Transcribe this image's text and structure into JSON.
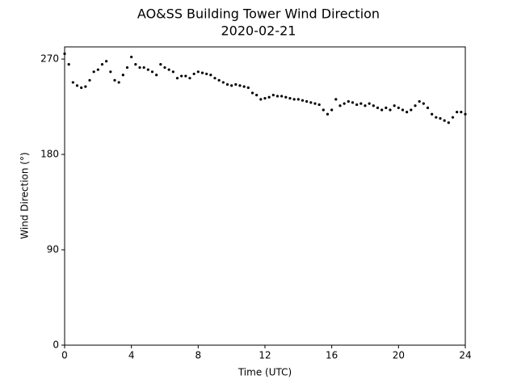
{
  "chart_data": {
    "type": "scatter",
    "title": "AO&SS Building Tower Wind Direction",
    "subtitle": "2020-02-21",
    "x_label": "Time (UTC)",
    "y_label": "Wind Direction (°)",
    "color": "#000000",
    "xlim": [
      0,
      24
    ],
    "xticks": [
      0,
      4,
      8,
      12,
      16,
      20,
      24
    ],
    "ylim": [
      0,
      281.5
    ],
    "yticks": [
      0,
      90,
      180,
      270
    ],
    "x": [
      0,
      0.25,
      0.5,
      0.75,
      1,
      1.25,
      1.5,
      1.75,
      2,
      2.25,
      2.5,
      2.75,
      3,
      3.25,
      3.5,
      3.75,
      4,
      4.25,
      4.5,
      4.75,
      5,
      5.25,
      5.5,
      5.75,
      6,
      6.25,
      6.5,
      6.75,
      7,
      7.25,
      7.5,
      7.75,
      8,
      8.25,
      8.5,
      8.75,
      9,
      9.25,
      9.5,
      9.75,
      10,
      10.25,
      10.5,
      10.75,
      11,
      11.25,
      11.5,
      11.75,
      12,
      12.25,
      12.5,
      12.75,
      13,
      13.25,
      13.5,
      13.75,
      14,
      14.25,
      14.5,
      14.75,
      15,
      15.25,
      15.5,
      15.75,
      16,
      16.25,
      16.5,
      16.75,
      17,
      17.25,
      17.5,
      17.75,
      18,
      18.25,
      18.5,
      18.75,
      19,
      19.25,
      19.5,
      19.75,
      20,
      20.25,
      20.5,
      20.75,
      21,
      21.25,
      21.5,
      21.75,
      22,
      22.25,
      22.5,
      22.75,
      23,
      23.25,
      23.5,
      23.75,
      24
    ],
    "values": [
      275,
      265,
      248,
      245,
      243,
      244,
      250,
      258,
      260,
      265,
      268,
      258,
      250,
      248,
      255,
      262,
      272,
      265,
      262,
      262,
      260,
      258,
      255,
      265,
      262,
      260,
      258,
      252,
      254,
      254,
      252,
      256,
      258,
      257,
      256,
      255,
      252,
      250,
      248,
      246,
      245,
      246,
      245,
      244,
      243,
      238,
      236,
      232,
      233,
      234,
      236,
      235,
      235,
      234,
      233,
      232,
      232,
      231,
      230,
      229,
      228,
      227,
      222,
      218,
      222,
      232,
      226,
      228,
      230,
      229,
      227,
      228,
      226,
      228,
      226,
      224,
      222,
      224,
      222,
      226,
      224,
      222,
      220,
      222,
      226,
      230,
      228,
      224,
      218,
      215,
      214,
      212,
      210,
      215,
      220,
      220,
      218
    ]
  }
}
